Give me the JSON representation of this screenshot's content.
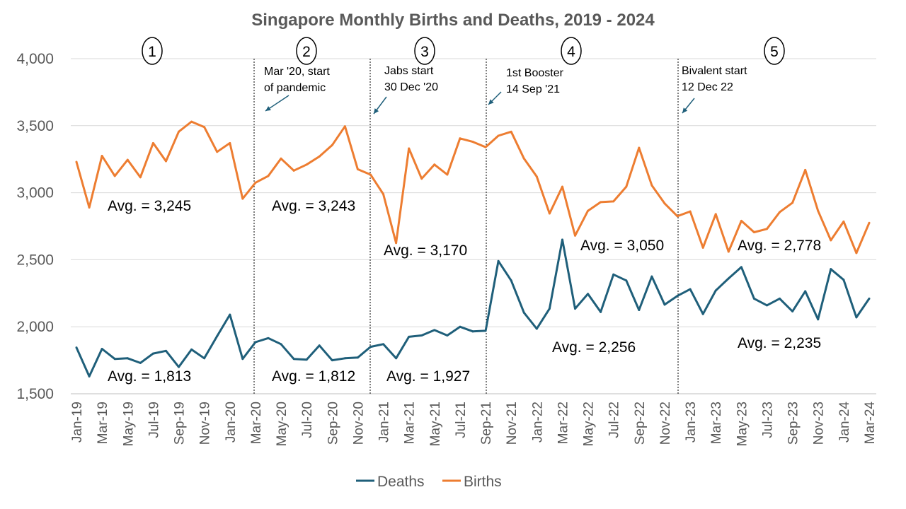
{
  "chart_data": {
    "type": "line",
    "title": "Singapore Monthly Births and Deaths, 2019 - 2024",
    "xlabel": "",
    "ylabel": "",
    "ylim": [
      1500,
      4000
    ],
    "yticks": [
      "1,500",
      "2,000",
      "2,500",
      "3,000",
      "3,500",
      "4,000"
    ],
    "ytick_values": [
      1500,
      2000,
      2500,
      3000,
      3500,
      4000
    ],
    "grid": true,
    "legend_position": "bottom",
    "x": [
      "Jan-19",
      "Feb-19",
      "Mar-19",
      "Apr-19",
      "May-19",
      "Jun-19",
      "Jul-19",
      "Aug-19",
      "Sep-19",
      "Oct-19",
      "Nov-19",
      "Dec-19",
      "Jan-20",
      "Feb-20",
      "Mar-20",
      "Apr-20",
      "May-20",
      "Jun-20",
      "Jul-20",
      "Aug-20",
      "Sep-20",
      "Oct-20",
      "Nov-20",
      "Dec-20",
      "Jan-21",
      "Feb-21",
      "Mar-21",
      "Apr-21",
      "May-21",
      "Jun-21",
      "Jul-21",
      "Aug-21",
      "Sep-21",
      "Oct-21",
      "Nov-21",
      "Dec-21",
      "Jan-22",
      "Feb-22",
      "Mar-22",
      "Apr-22",
      "May-22",
      "Jun-22",
      "Jul-22",
      "Aug-22",
      "Sep-22",
      "Oct-22",
      "Nov-22",
      "Dec-22",
      "Jan-23",
      "Feb-23",
      "Mar-23",
      "Apr-23",
      "May-23",
      "Jun-23",
      "Jul-23",
      "Aug-23",
      "Sep-23",
      "Oct-23",
      "Nov-23",
      "Dec-23",
      "Jan-24",
      "Feb-24",
      "Mar-24"
    ],
    "x_tick_labels": [
      "Jan-19",
      "Mar-19",
      "May-19",
      "Jul-19",
      "Sep-19",
      "Nov-19",
      "Jan-20",
      "Mar-20",
      "May-20",
      "Jul-20",
      "Sep-20",
      "Nov-20",
      "Jan-21",
      "Mar-21",
      "May-21",
      "Jul-21",
      "Sep-21",
      "Nov-21",
      "Jan-22",
      "Mar-22",
      "May-22",
      "Jul-22",
      "Sep-22",
      "Nov-22",
      "Jan-23",
      "Mar-23",
      "May-23",
      "Jul-23",
      "Sep-23",
      "Nov-23",
      "Jan-24",
      "Mar-24"
    ],
    "series": [
      {
        "name": "Deaths",
        "color": "#1f5f7a",
        "values": [
          1845,
          1630,
          1835,
          1760,
          1765,
          1730,
          1800,
          1820,
          1700,
          1830,
          1765,
          1930,
          2090,
          1760,
          1885,
          1915,
          1870,
          1760,
          1755,
          1860,
          1750,
          1765,
          1770,
          1850,
          1870,
          1765,
          1925,
          1935,
          1975,
          1935,
          2000,
          1965,
          1970,
          2490,
          2345,
          2105,
          1985,
          2135,
          2650,
          2135,
          2245,
          2110,
          2390,
          2345,
          2125,
          2375,
          2165,
          2230,
          2280,
          2095,
          2270,
          2360,
          2445,
          2210,
          2160,
          2210,
          2115,
          2265,
          2055,
          2430,
          2350,
          2070,
          2210
        ]
      },
      {
        "name": "Births",
        "color": "#ed7d31",
        "values": [
          3230,
          2890,
          3275,
          3125,
          3245,
          3115,
          3370,
          3235,
          3455,
          3530,
          3490,
          3305,
          3370,
          2955,
          3075,
          3125,
          3255,
          3165,
          3210,
          3270,
          3355,
          3495,
          3175,
          3135,
          2990,
          2625,
          3330,
          3105,
          3210,
          3135,
          3405,
          3380,
          3340,
          3425,
          3455,
          3255,
          3120,
          2845,
          3045,
          2680,
          2865,
          2930,
          2935,
          3045,
          3335,
          3055,
          2920,
          2825,
          2860,
          2590,
          2840,
          2560,
          2790,
          2705,
          2730,
          2855,
          2925,
          3170,
          2865,
          2645,
          2785,
          2550,
          2775
        ]
      }
    ],
    "averages": [
      {
        "series": "Births",
        "label": "Avg. = 3,245",
        "value": 3245
      },
      {
        "series": "Births",
        "label": "Avg. = 3,243",
        "value": 3243
      },
      {
        "series": "Births",
        "label": "Avg. = 3,170",
        "value": 3170
      },
      {
        "series": "Births",
        "label": "Avg. = 3,050",
        "value": 3050
      },
      {
        "series": "Births",
        "label": "Avg. = 2,778",
        "value": 2778
      },
      {
        "series": "Deaths",
        "label": "Avg. = 1,813",
        "value": 1813
      },
      {
        "series": "Deaths",
        "label": "Avg. = 1,812",
        "value": 1812
      },
      {
        "series": "Deaths",
        "label": "Avg. = 1,927",
        "value": 1927
      },
      {
        "series": "Deaths",
        "label": "Avg. = 2,256",
        "value": 2256
      },
      {
        "series": "Deaths",
        "label": "Avg. = 2,235",
        "value": 2235
      }
    ],
    "periods": [
      "1",
      "2",
      "3",
      "4",
      "5"
    ],
    "annotations": [
      {
        "lines": [
          "Mar '20, start",
          "of pandemic"
        ]
      },
      {
        "lines": [
          "Jabs start",
          "30 Dec '20"
        ]
      },
      {
        "lines": [
          "1st Booster",
          "14 Sep '21"
        ]
      },
      {
        "lines": [
          "Bivalent start",
          "12 Dec 22"
        ]
      }
    ]
  }
}
